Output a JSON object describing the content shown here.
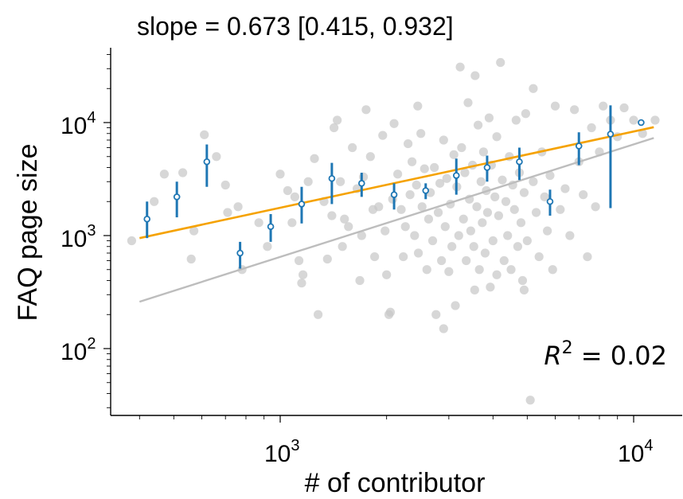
{
  "chart_data": {
    "type": "scatter",
    "title": "slope = 0.673 [0.415, 0.932]",
    "xlabel": "# of contributor",
    "ylabel": "FAQ page size",
    "xscale": "log",
    "yscale": "log",
    "xlim": [
      340,
      13000
    ],
    "ylim": [
      25,
      45000
    ],
    "x_ticks": [
      {
        "value": 1000,
        "base": "10",
        "exp": "3"
      },
      {
        "value": 10000,
        "base": "10",
        "exp": "4"
      }
    ],
    "y_ticks": [
      {
        "value": 100,
        "base": "10",
        "exp": "2"
      },
      {
        "value": 1000,
        "base": "10",
        "exp": "3"
      },
      {
        "value": 10000,
        "base": "10",
        "exp": "4"
      }
    ],
    "annotation": {
      "text": "R",
      "sup": "2",
      "rest": " = 0.02"
    },
    "colors": {
      "raw_points": "#c8c8c8",
      "binned": "#1f77b4",
      "fit_line": "#f5a200",
      "reference_line": "#bdbdbd"
    },
    "series": [
      {
        "kind": "raw-scatter",
        "points": [
          [
            380,
            900
          ],
          [
            440,
            2000
          ],
          [
            470,
            3500
          ],
          [
            530,
            3600
          ],
          [
            560,
            620
          ],
          [
            570,
            1100
          ],
          [
            610,
            7800
          ],
          [
            660,
            5000
          ],
          [
            700,
            2800
          ],
          [
            710,
            1600
          ],
          [
            760,
            1800
          ],
          [
            780,
            500
          ],
          [
            870,
            1300
          ],
          [
            920,
            800
          ],
          [
            1000,
            3500
          ],
          [
            1050,
            2500
          ],
          [
            1080,
            1300
          ],
          [
            1100,
            2200
          ],
          [
            1130,
            600
          ],
          [
            1160,
            450
          ],
          [
            1200,
            3000
          ],
          [
            1250,
            4800
          ],
          [
            1280,
            200
          ],
          [
            1330,
            2000
          ],
          [
            1360,
            620
          ],
          [
            1400,
            1500
          ],
          [
            1420,
            9000
          ],
          [
            1450,
            10500
          ],
          [
            1480,
            3000
          ],
          [
            1500,
            800
          ],
          [
            1520,
            1400
          ],
          [
            1560,
            1200
          ],
          [
            1600,
            6000
          ],
          [
            1650,
            2600
          ],
          [
            1680,
            400
          ],
          [
            1700,
            1000
          ],
          [
            1720,
            3300
          ],
          [
            1750,
            13000
          ],
          [
            1800,
            5000
          ],
          [
            1830,
            1700
          ],
          [
            1850,
            650
          ],
          [
            1900,
            1800
          ],
          [
            1950,
            7700
          ],
          [
            1980,
            1100
          ],
          [
            2000,
            450
          ],
          [
            2030,
            200
          ],
          [
            2050,
            210
          ],
          [
            2080,
            2100
          ],
          [
            2100,
            9800
          ],
          [
            2150,
            3500
          ],
          [
            2200,
            1700
          ],
          [
            2230,
            650
          ],
          [
            2260,
            1200
          ],
          [
            2300,
            6500
          ],
          [
            2330,
            2300
          ],
          [
            2360,
            4500
          ],
          [
            2400,
            1000
          ],
          [
            2430,
            2800
          ],
          [
            2460,
            700
          ],
          [
            2500,
            8000
          ],
          [
            2520,
            1800
          ],
          [
            2560,
            3900
          ],
          [
            2600,
            500
          ],
          [
            2630,
            1400
          ],
          [
            2660,
            2400
          ],
          [
            2700,
            900
          ],
          [
            2730,
            4000
          ],
          [
            2760,
            200
          ],
          [
            2800,
            1600
          ],
          [
            2830,
            2900
          ],
          [
            2860,
            600
          ],
          [
            2900,
            7000
          ],
          [
            2930,
            1200
          ],
          [
            2960,
            3200
          ],
          [
            3000,
            480
          ],
          [
            3030,
            1900
          ],
          [
            3060,
            800
          ],
          [
            3100,
            5200
          ],
          [
            3130,
            240
          ],
          [
            3160,
            2700
          ],
          [
            3200,
            1000
          ],
          [
            3230,
            31000
          ],
          [
            3260,
            6000
          ],
          [
            3300,
            1400
          ],
          [
            3330,
            3600
          ],
          [
            3360,
            600
          ],
          [
            3400,
            15000
          ],
          [
            3430,
            2100
          ],
          [
            3460,
            1100
          ],
          [
            3500,
            4200
          ],
          [
            3530,
            800
          ],
          [
            3560,
            26000
          ],
          [
            3600,
            1800
          ],
          [
            3630,
            9500
          ],
          [
            3660,
            500
          ],
          [
            3700,
            3000
          ],
          [
            3730,
            1300
          ],
          [
            3760,
            5500
          ],
          [
            3800,
            700
          ],
          [
            3830,
            2500
          ],
          [
            3860,
            1600
          ],
          [
            3900,
            11000
          ],
          [
            3930,
            350
          ],
          [
            3960,
            4200
          ],
          [
            4000,
            900
          ],
          [
            4050,
            2200
          ],
          [
            4100,
            7500
          ],
          [
            4150,
            1500
          ],
          [
            4200,
            34000
          ],
          [
            4250,
            3100
          ],
          [
            4300,
            600
          ],
          [
            4350,
            2000
          ],
          [
            4400,
            1000
          ],
          [
            4450,
            5000
          ],
          [
            4500,
            500
          ],
          [
            4550,
            2800
          ],
          [
            4600,
            1700
          ],
          [
            4650,
            10500
          ],
          [
            4700,
            800
          ],
          [
            4750,
            3600
          ],
          [
            4800,
            1300
          ],
          [
            4850,
            400
          ],
          [
            4900,
            2400
          ],
          [
            4950,
            12000
          ],
          [
            5000,
            900
          ],
          [
            5100,
            35
          ],
          [
            5200,
            3000
          ],
          [
            5300,
            1600
          ],
          [
            5400,
            650
          ],
          [
            5500,
            5500
          ],
          [
            5600,
            2200
          ],
          [
            5700,
            1100
          ],
          [
            5800,
            3400
          ],
          [
            5900,
            500
          ],
          [
            6000,
            14000
          ],
          [
            6200,
            1700
          ],
          [
            6400,
            2600
          ],
          [
            6600,
            1000
          ],
          [
            6800,
            13000
          ],
          [
            7000,
            4500
          ],
          [
            7200,
            2300
          ],
          [
            7400,
            650
          ],
          [
            7600,
            9000
          ],
          [
            7800,
            1800
          ],
          [
            8000,
            5500
          ],
          [
            8200,
            14000
          ],
          [
            8600,
            10500
          ],
          [
            9000,
            7500
          ],
          [
            9400,
            13500
          ],
          [
            10000,
            10500
          ],
          [
            10600,
            8000
          ],
          [
            11500,
            10500
          ],
          [
            2450,
            14000
          ],
          [
            5200,
            20000
          ],
          [
            1150,
            380
          ],
          [
            2900,
            150
          ],
          [
            3550,
            330
          ],
          [
            4100,
            450
          ],
          [
            4900,
            330
          ]
        ]
      },
      {
        "kind": "binned-mean",
        "points": [
          {
            "x": 420,
            "y": 1400,
            "lo": 950,
            "hi": 2000
          },
          {
            "x": 510,
            "y": 2200,
            "lo": 1450,
            "hi": 3000
          },
          {
            "x": 620,
            "y": 4500,
            "lo": 2700,
            "hi": 6400
          },
          {
            "x": 770,
            "y": 700,
            "lo": 510,
            "hi": 880
          },
          {
            "x": 940,
            "y": 1200,
            "lo": 880,
            "hi": 1550
          },
          {
            "x": 1150,
            "y": 1900,
            "lo": 1280,
            "hi": 2700
          },
          {
            "x": 1400,
            "y": 3200,
            "lo": 1900,
            "hi": 4400
          },
          {
            "x": 1700,
            "y": 2900,
            "lo": 2200,
            "hi": 3600
          },
          {
            "x": 2100,
            "y": 2300,
            "lo": 1700,
            "hi": 2900
          },
          {
            "x": 2580,
            "y": 2500,
            "lo": 2100,
            "hi": 2900
          },
          {
            "x": 3150,
            "y": 3400,
            "lo": 2300,
            "hi": 4800
          },
          {
            "x": 3850,
            "y": 4000,
            "lo": 3000,
            "hi": 5100
          },
          {
            "x": 4750,
            "y": 4500,
            "lo": 3100,
            "hi": 6000
          },
          {
            "x": 5800,
            "y": 2000,
            "lo": 1500,
            "hi": 2550
          },
          {
            "x": 7000,
            "y": 6200,
            "lo": 4200,
            "hi": 8200
          },
          {
            "x": 8600,
            "y": 7900,
            "lo": 1750,
            "hi": 14200
          },
          {
            "x": 10500,
            "y": 10000,
            "lo": 10000,
            "hi": 10000
          }
        ]
      },
      {
        "kind": "fit-line",
        "points": [
          [
            400,
            950
          ],
          [
            11400,
            9100
          ]
        ]
      },
      {
        "kind": "reference-line",
        "points": [
          [
            400,
            260
          ],
          [
            11400,
            7300
          ]
        ]
      }
    ]
  }
}
